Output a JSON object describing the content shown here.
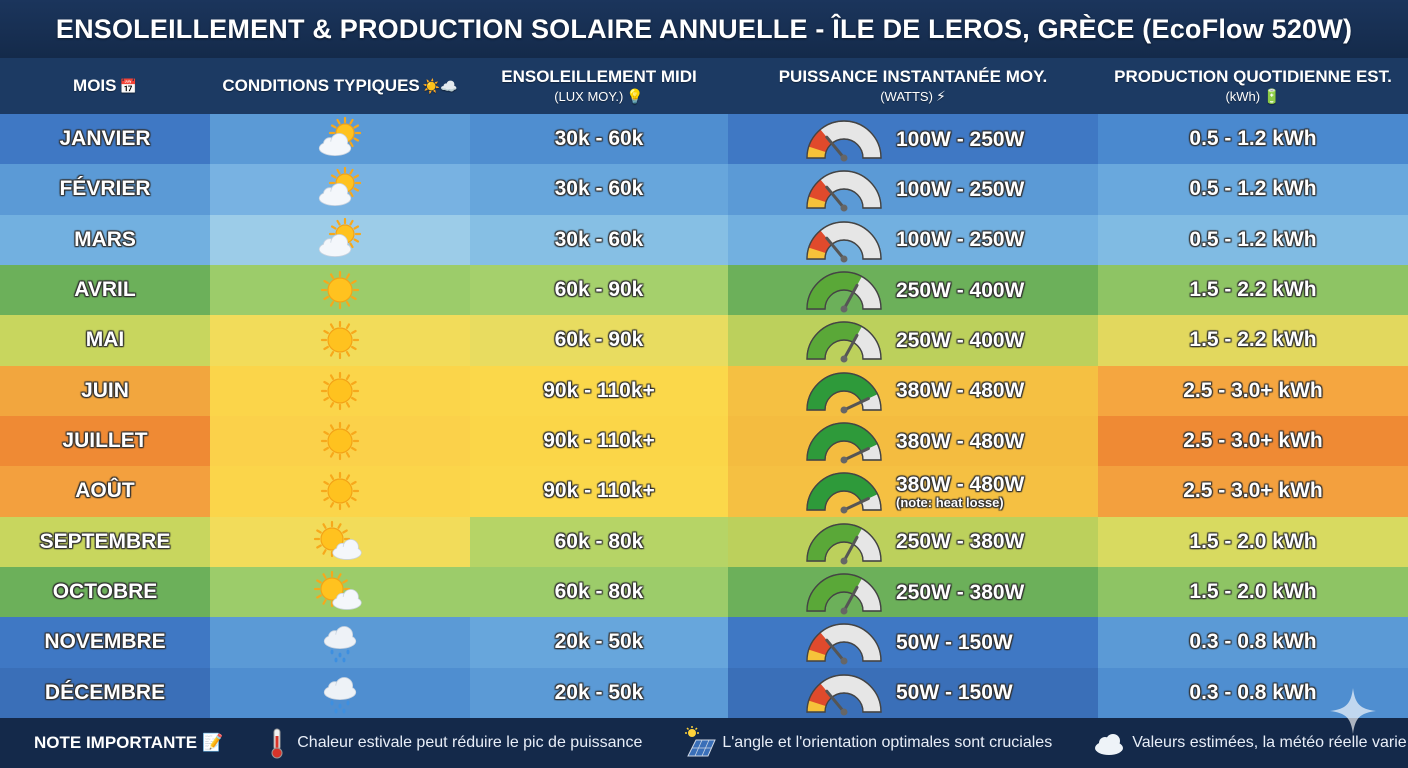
{
  "title": "ENSOLEILLEMENT & PRODUCTION SOLAIRE ANNUELLE - ÎLE DE LEROS, GRÈCE (EcoFlow 520W)",
  "headers": {
    "month": "MOIS",
    "month_icon": "📅",
    "conditions": "CONDITIONS TYPIQUES",
    "conditions_icon": "☀️☁️",
    "lux": "ENSOLEILLEMENT MIDI",
    "lux_sub": "(LUX MOY.)",
    "lux_icon": "💡",
    "power": "PUISSANCE INSTANTANÉE MOY.",
    "power_sub": "(WATTS)",
    "power_icon": "⚡",
    "prod": "PRODUCTION QUOTIDIENNE EST.",
    "prod_sub": "(kWh)",
    "prod_icon": "🔋"
  },
  "rows": [
    {
      "month": "JANVIER",
      "weather": "partly-cloudy-icon",
      "lux": "30k - 60k",
      "power": "100W - 250W",
      "power_note": "",
      "gauge": "low",
      "prod": "0.5 - 1.2 kWh"
    },
    {
      "month": "FÉVRIER",
      "weather": "partly-cloudy-icon",
      "lux": "30k - 60k",
      "power": "100W - 250W",
      "power_note": "",
      "gauge": "low",
      "prod": "0.5 - 1.2 kWh"
    },
    {
      "month": "MARS",
      "weather": "partly-cloudy-icon",
      "lux": "30k - 60k",
      "power": "100W - 250W",
      "power_note": "",
      "gauge": "low",
      "prod": "0.5 - 1.2 kWh"
    },
    {
      "month": "AVRIL",
      "weather": "sun-icon",
      "lux": "60k - 90k",
      "power": "250W - 400W",
      "power_note": "",
      "gauge": "mid",
      "prod": "1.5 - 2.2 kWh"
    },
    {
      "month": "MAI",
      "weather": "sun-icon",
      "lux": "60k - 90k",
      "power": "250W - 400W",
      "power_note": "",
      "gauge": "mid",
      "prod": "1.5 - 2.2 kWh"
    },
    {
      "month": "JUIN",
      "weather": "sun-icon",
      "lux": "90k - 110k+",
      "power": "380W - 480W",
      "power_note": "",
      "gauge": "high",
      "prod": "2.5 - 3.0+ kWh"
    },
    {
      "month": "JUILLET",
      "weather": "sun-icon",
      "lux": "90k - 110k+",
      "power": "380W - 480W",
      "power_note": "",
      "gauge": "high",
      "prod": "2.5 - 3.0+ kWh"
    },
    {
      "month": "AOÛT",
      "weather": "sun-icon",
      "lux": "90k - 110k+",
      "power": "380W - 480W",
      "power_note": "(note: heat losse)",
      "gauge": "high",
      "prod": "2.5 - 3.0+ kWh"
    },
    {
      "month": "SEPTEMBRE",
      "weather": "sun-behind-cloud-icon",
      "lux": "60k - 80k",
      "power": "250W - 380W",
      "power_note": "",
      "gauge": "mid",
      "prod": "1.5 - 2.0 kWh"
    },
    {
      "month": "OCTOBRE",
      "weather": "sun-behind-cloud-icon",
      "lux": "60k - 80k",
      "power": "250W - 380W",
      "power_note": "",
      "gauge": "mid",
      "prod": "1.5 - 2.0 kWh"
    },
    {
      "month": "NOVEMBRE",
      "weather": "rain-cloud-icon",
      "lux": "20k - 50k",
      "power": "50W - 150W",
      "power_note": "",
      "gauge": "low",
      "prod": "0.3 - 0.8 kWh"
    },
    {
      "month": "DÉCEMBRE",
      "weather": "rain-cloud-icon",
      "lux": "20k - 50k",
      "power": "50W - 150W",
      "power_note": "",
      "gauge": "low",
      "prod": "0.3 - 0.8 kWh"
    }
  ],
  "row_colors": [
    [
      "#3f78c4",
      "#5b9ad6",
      "#4f8ed0",
      "#3f78c4",
      "#4a89cf"
    ],
    [
      "#5b9ad6",
      "#78b2e2",
      "#67a6dc",
      "#5b9ad6",
      "#69a8dd"
    ],
    [
      "#72b0e0",
      "#9ccce8",
      "#86bfe4",
      "#72b0e0",
      "#80bbe3"
    ],
    [
      "#6cb05a",
      "#9ccc6a",
      "#a5d06c",
      "#6cb05a",
      "#8ec464"
    ],
    [
      "#c8d65e",
      "#f2dc5a",
      "#e8dc60",
      "#bcd05c",
      "#e2d85e"
    ],
    [
      "#f2a63e",
      "#fbd54a",
      "#fbd84a",
      "#f5c042",
      "#f5a640"
    ],
    [
      "#ef8a34",
      "#fbd14a",
      "#fbd648",
      "#f4bc40",
      "#ef8a34"
    ],
    [
      "#f3a03e",
      "#fbd54a",
      "#fbd84a",
      "#f5c042",
      "#f3a03e"
    ],
    [
      "#c8d65e",
      "#f2dc5a",
      "#b6d466",
      "#bcd05c",
      "#d8da60"
    ],
    [
      "#6cb05a",
      "#9ccc6a",
      "#9ccc6a",
      "#6cb05a",
      "#8ec464"
    ],
    [
      "#3f78c4",
      "#5b9ad6",
      "#67a6dc",
      "#3f78c4",
      "#5b9ad6"
    ],
    [
      "#3a6fb8",
      "#4f8ed0",
      "#5b9ad6",
      "#3a6fb8",
      "#4f8ed0"
    ]
  ],
  "gauge_colors": {
    "low": "#e04a2c",
    "mid": "#5aa838",
    "high": "#2e9a3a",
    "track": "#e6e6e6"
  },
  "footer": {
    "title": "NOTE IMPORTANTE",
    "title_icon": "📝",
    "items": [
      {
        "icon": "thermometer-icon",
        "text": "Chaleur estivale peut réduire le pic de puissance"
      },
      {
        "icon": "solar-panel-icon",
        "text": "L'angle et l'orientation optimales sont cruciales"
      },
      {
        "icon": "cloud-icon",
        "text": "Valeurs estimées, la météo réelle varie"
      }
    ]
  }
}
